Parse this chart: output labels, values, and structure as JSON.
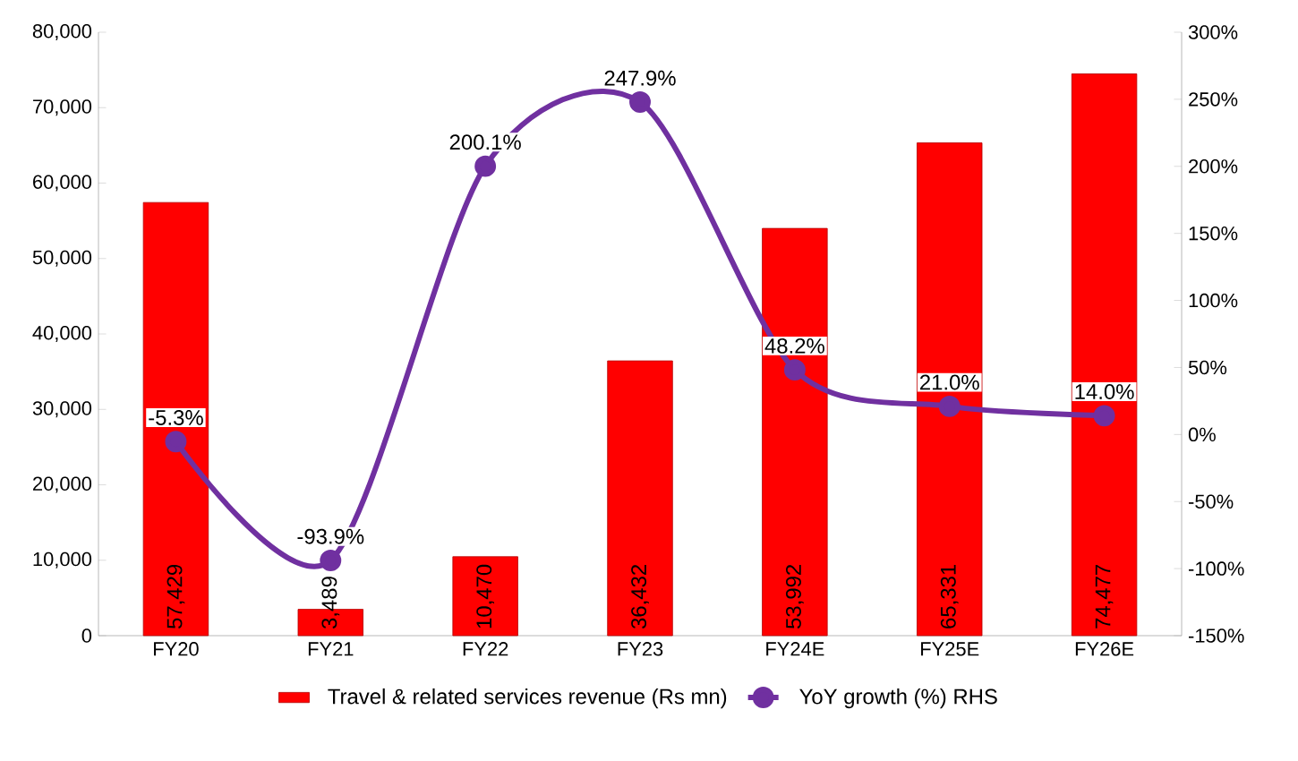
{
  "chart_data": {
    "type": "bar",
    "categories": [
      "FY20",
      "FY21",
      "FY22",
      "FY23",
      "FY24E",
      "FY25E",
      "FY26E"
    ],
    "series": [
      {
        "name": "Travel & related services revenue (Rs mn)",
        "color": "#ff0000",
        "values": [
          57429,
          3489,
          10470,
          36432,
          53992,
          65331,
          74477
        ],
        "value_labels": [
          "57,429",
          "3,489",
          "10,470",
          "36,432",
          "53,992",
          "65,331",
          "74,477"
        ]
      },
      {
        "name": "YoY growth (%) RHS",
        "type": "line",
        "axis": "y2",
        "color": "#7030a0",
        "marker": "circle",
        "values": [
          -5.3,
          -93.9,
          200.1,
          247.9,
          48.2,
          21.0,
          14.0
        ],
        "value_labels": [
          "-5.3%",
          "-93.9%",
          "200.1%",
          "247.9%",
          "48.2%",
          "21.0%",
          "14.0%"
        ]
      }
    ],
    "ylim": [
      0,
      80000
    ],
    "yticks": [
      0,
      {
        "value": 10000,
        "label": "10,000"
      },
      {
        "value": 20000,
        "label": "20,000"
      },
      {
        "value": 30000,
        "label": "30,000"
      },
      {
        "value": 40000,
        "label": "40,000"
      },
      {
        "value": 50000,
        "label": "50,000"
      },
      {
        "value": 60000,
        "label": "60,000"
      },
      {
        "value": 70000,
        "label": "70,000"
      },
      {
        "value": 80000,
        "label": "80,000"
      }
    ],
    "y2lim": [
      -150,
      300
    ],
    "y2ticks": [
      {
        "value": -150,
        "label": "-150%"
      },
      {
        "value": -100,
        "label": "-100%"
      },
      {
        "value": -50,
        "label": "-50%"
      },
      {
        "value": 0,
        "label": "0%"
      },
      {
        "value": 50,
        "label": "50%"
      },
      {
        "value": 100,
        "label": "100%"
      },
      {
        "value": 150,
        "label": "150%"
      },
      {
        "value": 200,
        "label": "200%"
      },
      {
        "value": 250,
        "label": "250%"
      },
      {
        "value": 300,
        "label": "300%"
      }
    ],
    "legend": "bottom"
  }
}
